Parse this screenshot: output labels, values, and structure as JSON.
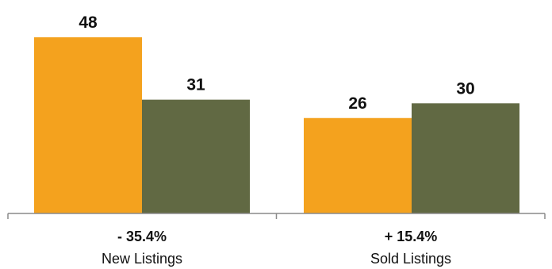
{
  "chart_data": {
    "type": "bar",
    "categories": [
      "New Listings",
      "Sold Listings"
    ],
    "category_changes": [
      "- 35.4%",
      "+ 15.4%"
    ],
    "series": [
      {
        "color": "#F4A21E",
        "values": [
          48,
          26
        ]
      },
      {
        "color": "#616943",
        "values": [
          31,
          30
        ]
      }
    ],
    "data_labels": [
      [
        "48",
        "26"
      ],
      [
        "31",
        "30"
      ]
    ],
    "title": "",
    "xlabel": "",
    "ylabel": "",
    "ylim": [
      0,
      48
    ],
    "grid": false,
    "legend": "none"
  }
}
